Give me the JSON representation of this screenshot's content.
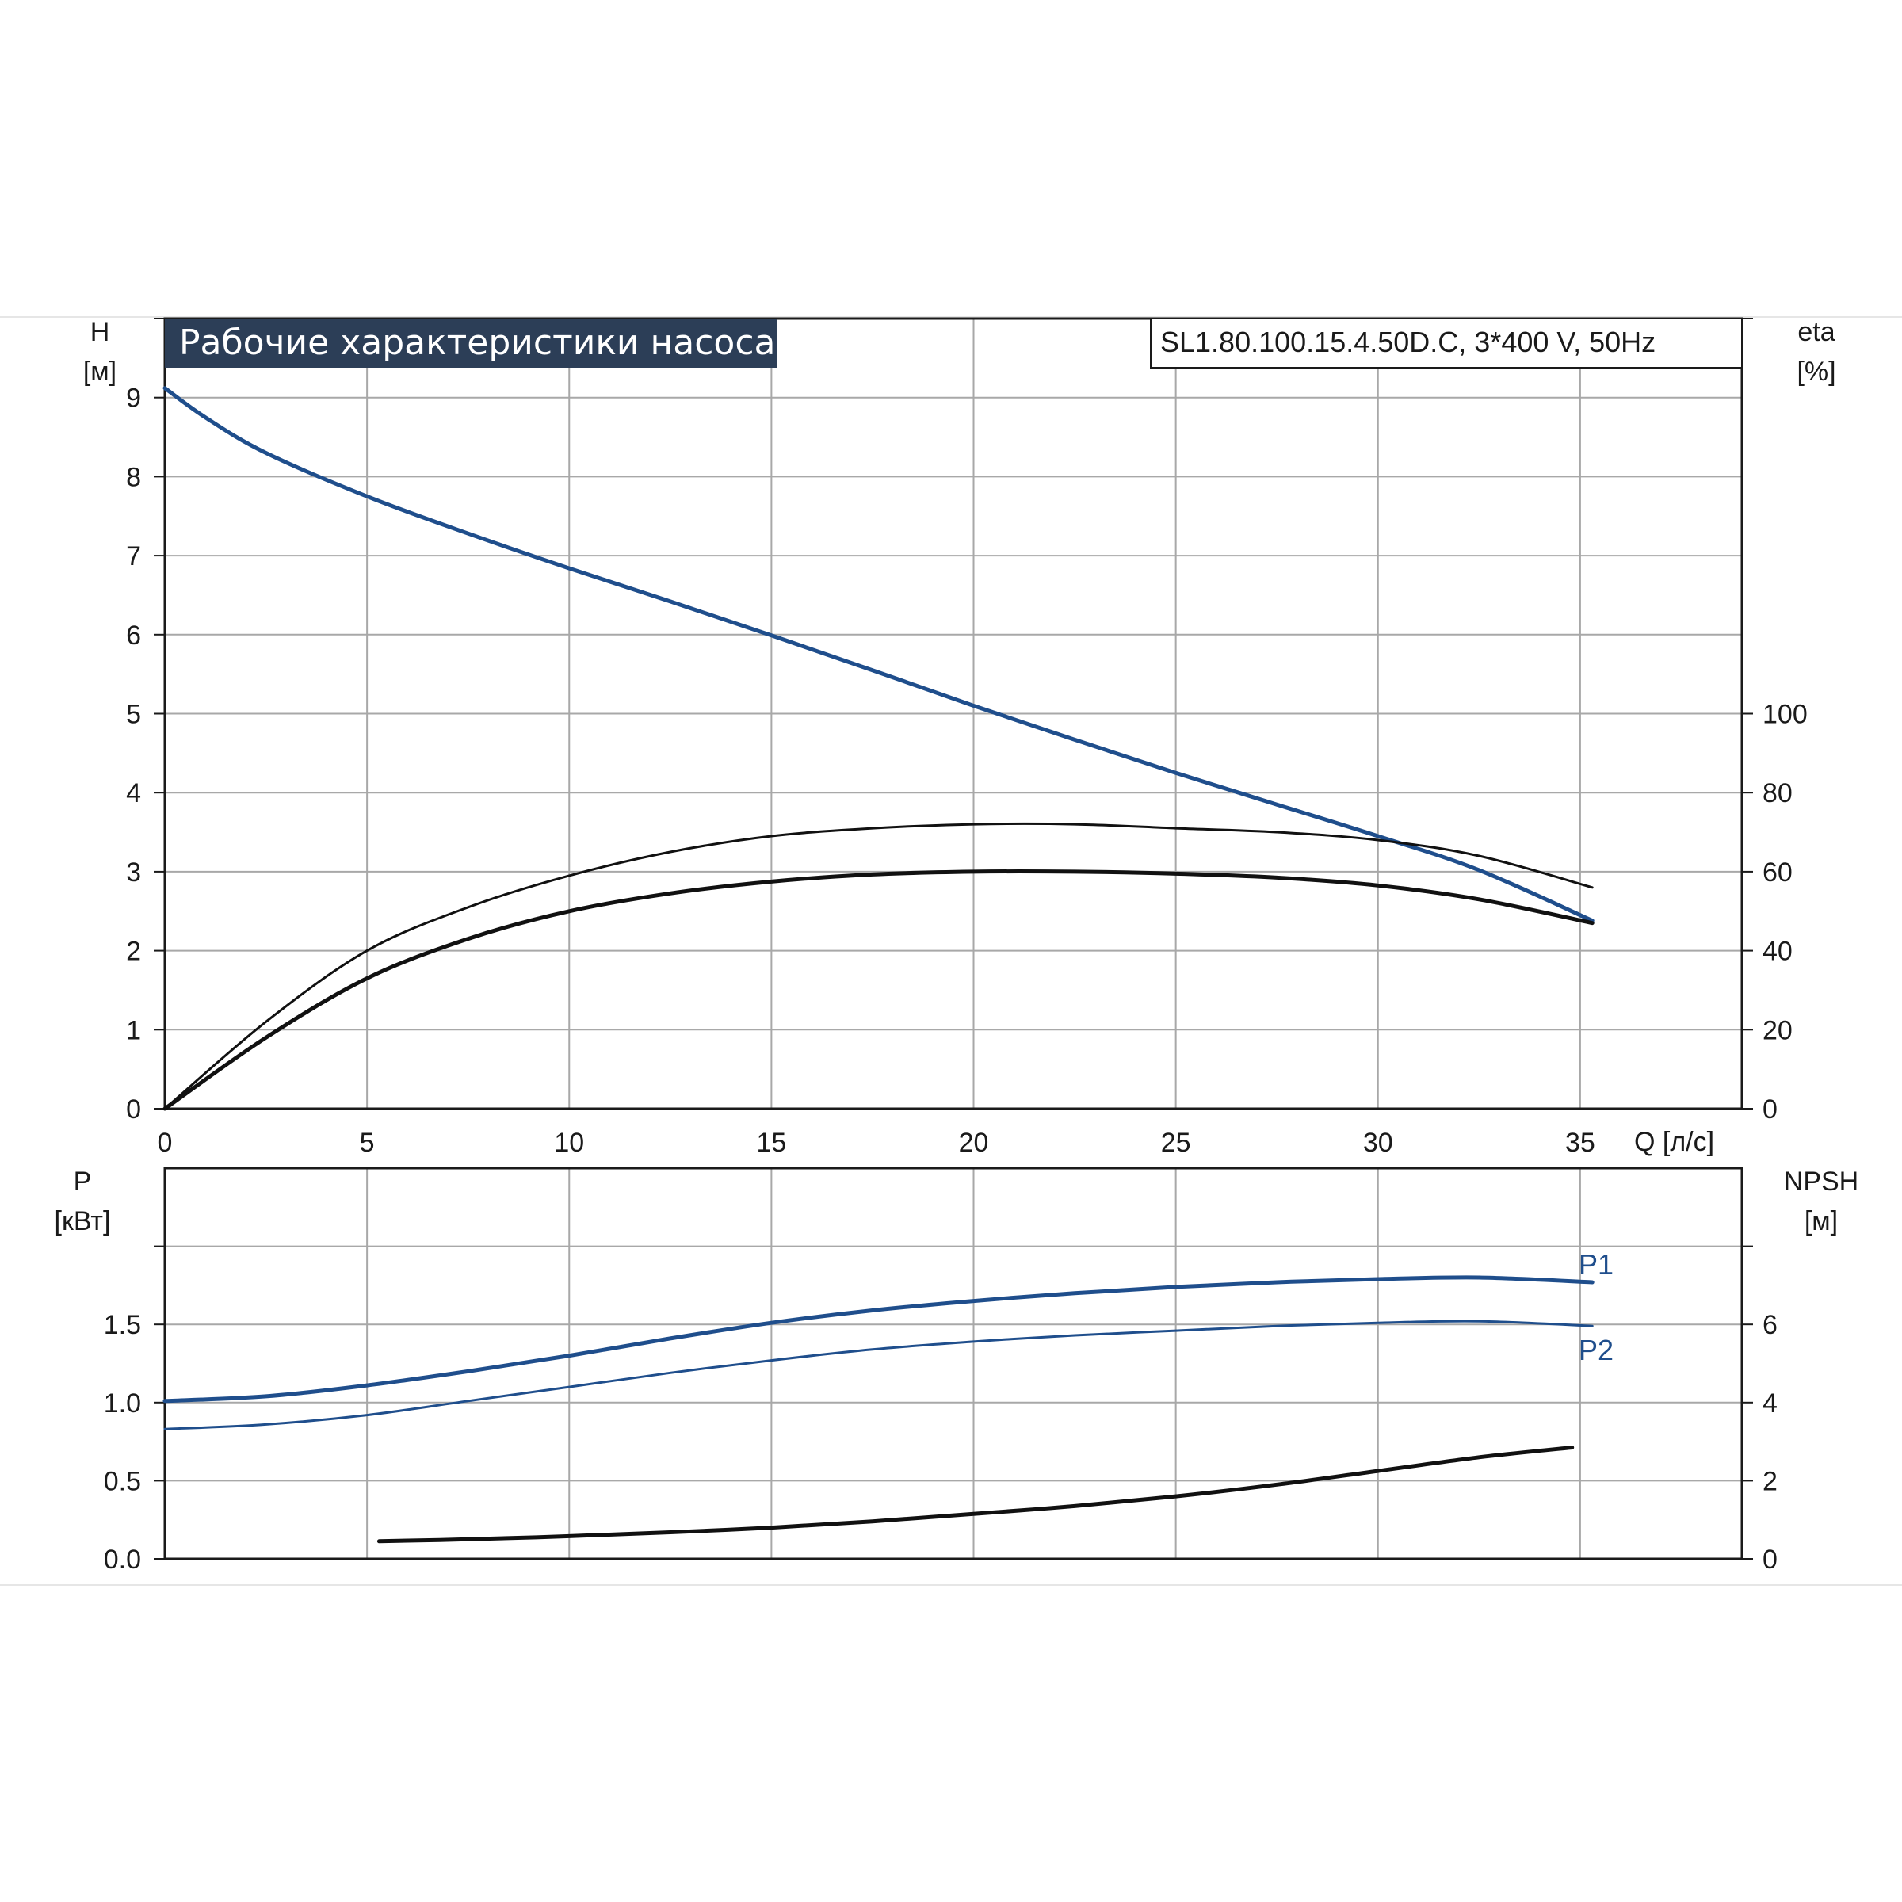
{
  "header": {
    "title": "Рабочие характеристики насоса",
    "model": "SL1.80.100.15.4.50D.C, 3*400 V, 50Hz"
  },
  "colors": {
    "curve_blue": "#1f4e8c",
    "curve_black": "#111111",
    "grid": "#a8a8a8",
    "title_bg": "#2c3e57"
  },
  "chart_data": [
    {
      "type": "line",
      "panel": "upper",
      "x_axis": {
        "label": "Q [л/с]",
        "range": [
          0,
          39
        ],
        "ticks": [
          0,
          5,
          10,
          15,
          20,
          25,
          30,
          35
        ],
        "tick_labels": [
          "0",
          "5",
          "10",
          "15",
          "20",
          "25",
          "30",
          "35"
        ]
      },
      "y_left": {
        "label_line1": "H",
        "label_line2": "[м]",
        "range": [
          0,
          10
        ],
        "ticks": [
          0,
          1,
          2,
          3,
          4,
          5,
          6,
          7,
          8,
          9
        ],
        "tick_labels": [
          "0",
          "1",
          "2",
          "3",
          "4",
          "5",
          "6",
          "7",
          "8",
          "9"
        ]
      },
      "y_right": {
        "label_line1": "eta",
        "label_line2": "[%]",
        "range": [
          0,
          200
        ],
        "ticks": [
          0,
          20,
          40,
          60,
          80,
          100
        ],
        "tick_labels": [
          "0",
          "20",
          "40",
          "60",
          "80",
          "100"
        ]
      },
      "grid": true,
      "series": [
        {
          "id": "H",
          "axis": "left",
          "color": "blue",
          "x": [
            0,
            1,
            2.5,
            5,
            7.5,
            10,
            12.5,
            15,
            17.5,
            20,
            22.5,
            25,
            27.5,
            30,
            32.5,
            35.3
          ],
          "y": [
            9.12,
            8.75,
            8.3,
            7.75,
            7.28,
            6.84,
            6.42,
            5.99,
            5.55,
            5.1,
            4.67,
            4.25,
            3.85,
            3.45,
            3.02,
            2.38
          ]
        },
        {
          "id": "eta_thin",
          "axis": "right",
          "color": "black",
          "width": "thin",
          "x": [
            0,
            2.5,
            5,
            7.5,
            10,
            12.5,
            15,
            17.5,
            20,
            22.5,
            25,
            27.5,
            30,
            32.5,
            35.3
          ],
          "y": [
            0,
            22,
            40,
            51,
            59,
            65,
            69,
            71,
            72,
            72,
            71,
            70,
            68,
            64,
            56
          ]
        },
        {
          "id": "eta_thick",
          "axis": "right",
          "color": "black",
          "width": "thick",
          "x": [
            0,
            2.5,
            5,
            7.5,
            10,
            12.5,
            15,
            17.5,
            20,
            22.5,
            25,
            27.5,
            30,
            32.5,
            35.3
          ],
          "y": [
            0,
            18,
            33,
            43,
            50,
            54.5,
            57.5,
            59.3,
            60,
            60,
            59.5,
            58.5,
            56.5,
            53,
            47
          ]
        }
      ]
    },
    {
      "type": "line",
      "panel": "lower",
      "x_axis": {
        "label": "",
        "range": [
          0,
          39
        ],
        "ticks": [
          0,
          5,
          10,
          15,
          20,
          25,
          30,
          35
        ]
      },
      "y_left": {
        "label_line1": "P",
        "label_line2": "[кВт]",
        "range": [
          0,
          2.5
        ],
        "ticks": [
          0,
          0.5,
          1.0,
          1.5
        ],
        "tick_labels": [
          "0.0",
          "0.5",
          "1.0",
          "1.5"
        ]
      },
      "y_right": {
        "label_line1": "NPSH",
        "label_line2": "[м]",
        "range": [
          0,
          10
        ],
        "ticks": [
          0,
          2,
          4,
          6
        ],
        "tick_labels": [
          "0",
          "2",
          "4",
          "6"
        ]
      },
      "grid": true,
      "series": [
        {
          "id": "P1",
          "name": "P1",
          "axis": "left",
          "color": "blue",
          "width": "thick",
          "x": [
            0,
            2.5,
            5,
            7.5,
            10,
            12.5,
            15,
            17.5,
            20,
            22.5,
            25,
            27.5,
            30,
            32.5,
            35.3
          ],
          "y": [
            1.01,
            1.04,
            1.11,
            1.2,
            1.3,
            1.41,
            1.51,
            1.59,
            1.65,
            1.7,
            1.74,
            1.77,
            1.79,
            1.8,
            1.77
          ]
        },
        {
          "id": "P2",
          "name": "P2",
          "axis": "left",
          "color": "blue",
          "width": "thin",
          "x": [
            0,
            2.5,
            5,
            7.5,
            10,
            12.5,
            15,
            17.5,
            20,
            22.5,
            25,
            27.5,
            30,
            32.5,
            35.3
          ],
          "y": [
            0.83,
            0.86,
            0.92,
            1.01,
            1.1,
            1.19,
            1.27,
            1.34,
            1.39,
            1.43,
            1.46,
            1.49,
            1.51,
            1.52,
            1.49
          ]
        },
        {
          "id": "NPSH",
          "axis": "right",
          "color": "black",
          "width": "thick",
          "x": [
            5.3,
            7.5,
            10,
            12.5,
            15,
            17.5,
            20,
            22.5,
            25,
            27.5,
            30,
            32.5,
            34.8
          ],
          "y": [
            0.45,
            0.5,
            0.58,
            0.68,
            0.8,
            0.96,
            1.15,
            1.35,
            1.6,
            1.9,
            2.25,
            2.6,
            2.85
          ]
        }
      ]
    }
  ]
}
